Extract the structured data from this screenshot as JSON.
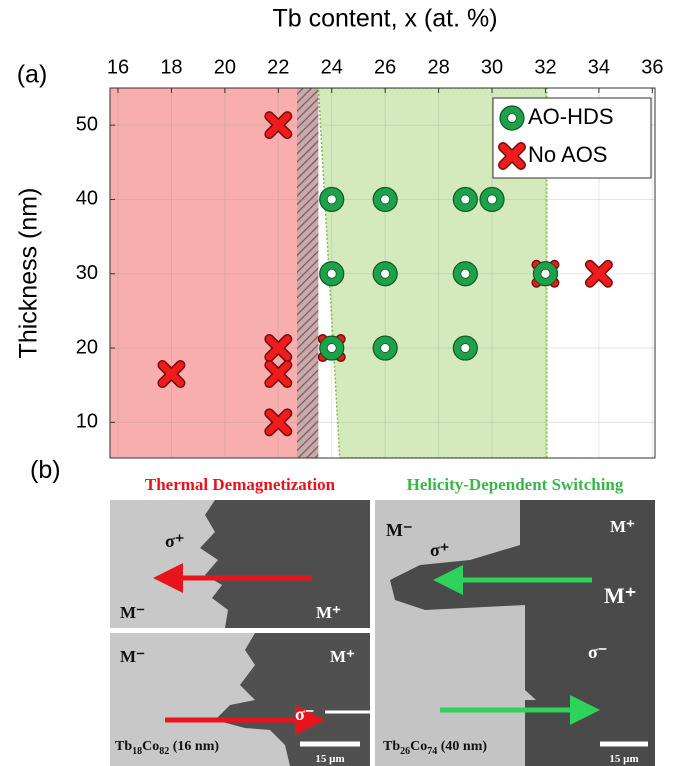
{
  "chart_data": {
    "type": "scatter",
    "title": "Tb content, x (at. %)",
    "y_label": "Thickness (nm)",
    "panel_label": "(a)",
    "xlim": [
      15.7,
      36.1
    ],
    "xticks": [
      16,
      18,
      20,
      22,
      24,
      26,
      28,
      30,
      32,
      34,
      36
    ],
    "ylim": [
      5.2,
      55
    ],
    "yticks": [
      10,
      20,
      30,
      40,
      50
    ],
    "grid": true,
    "legend": "upper right",
    "regions": [
      {
        "color": "#f8aeac",
        "x_top": [
          15.7,
          22.7
        ],
        "x_bottom": [
          15.7,
          22.7
        ]
      },
      {
        "color": "#9a7c7c",
        "hatch": true,
        "x_top": [
          22.7,
          23.5
        ],
        "x_bottom": [
          22.7,
          23.5
        ]
      },
      {
        "color": "#d4eabd",
        "x_top": [
          23.5,
          32.05
        ],
        "x_bottom": [
          24.3,
          32.05
        ]
      }
    ],
    "series": [
      {
        "name": "No AOS",
        "color": "#ee1c1c",
        "marker": "x",
        "x": [
          22,
          22,
          22,
          18,
          22,
          34,
          24,
          32
        ],
        "values": [
          50,
          20,
          16.5,
          16.5,
          10,
          30,
          20,
          30
        ]
      },
      {
        "name": "AO-HDS",
        "color": "#1fa04a",
        "marker": "ring",
        "x": [
          24,
          26,
          29,
          30,
          24,
          26,
          29,
          32,
          24,
          26,
          29
        ],
        "values": [
          40,
          40,
          40,
          40,
          30,
          30,
          30,
          30,
          20,
          20,
          20
        ]
      }
    ]
  },
  "panel_b": {
    "panel_label": "(b)",
    "titles": [
      "Thermal Demagnetization",
      "Helicity-Dependent Switching"
    ],
    "images": [
      {
        "labels": [
          "σ⁺",
          "M⁻",
          "M⁺"
        ]
      },
      {
        "labels": [
          "M⁻",
          "M⁺",
          "σ⁻"
        ],
        "sample": [
          "Tb",
          "18",
          "Co",
          "82",
          " (16 nm)"
        ],
        "scale": "15 µm"
      },
      {
        "labels": [
          "M⁻",
          "M⁺",
          "σ⁺",
          "M⁺",
          "σ⁻"
        ],
        "sample": [
          "Tb",
          "26",
          "Co",
          "74",
          " (40 nm)"
        ],
        "scale": "15 µm"
      }
    ]
  }
}
